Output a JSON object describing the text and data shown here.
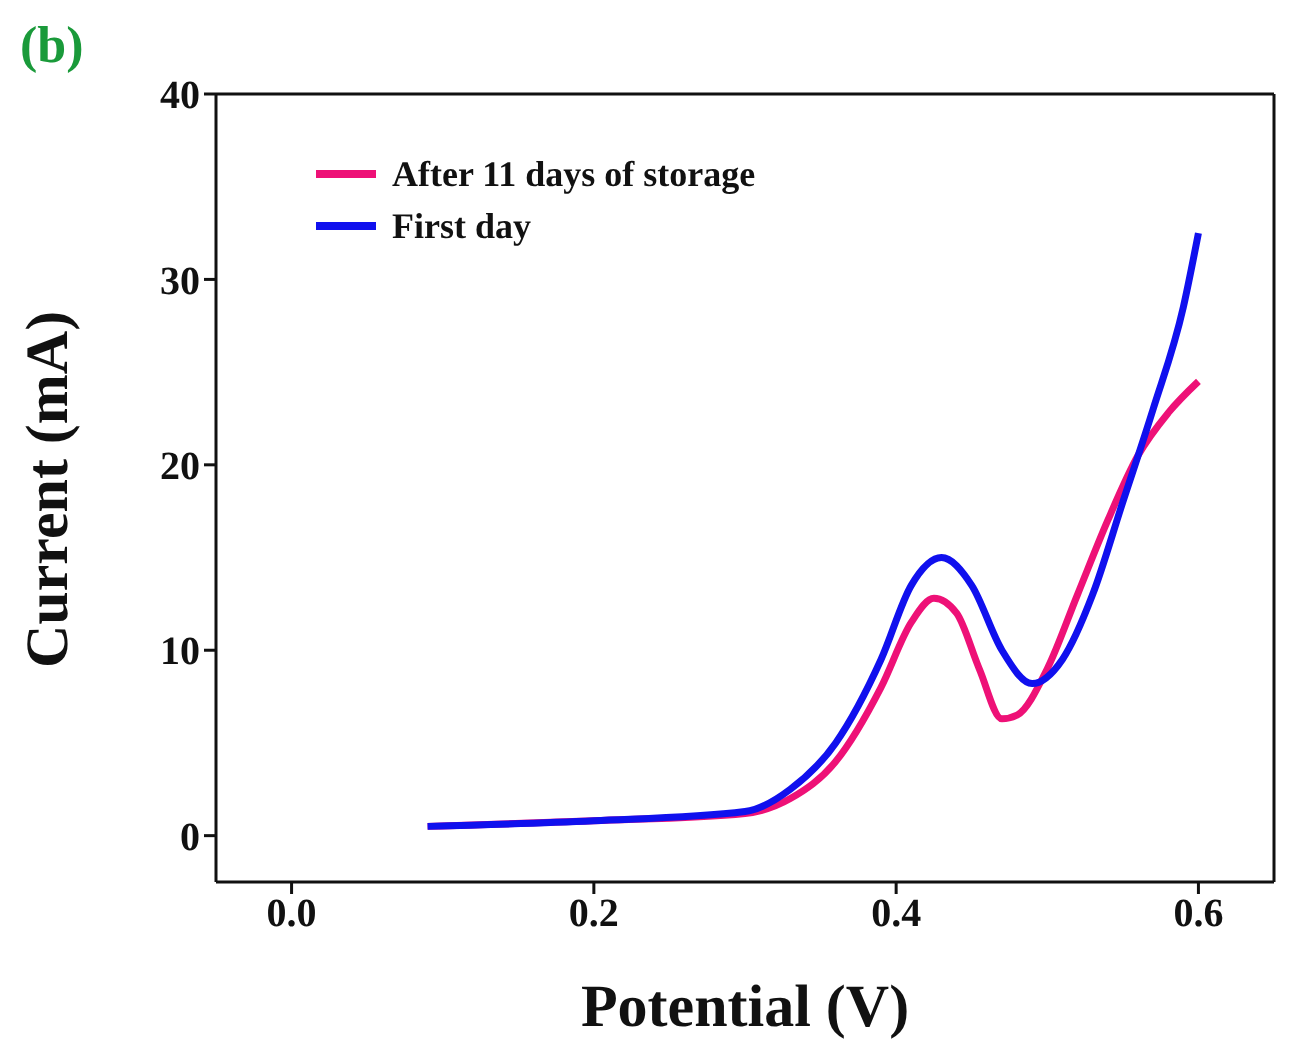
{
  "chart_data": {
    "type": "line",
    "title": "(b)",
    "xlabel": "Potential (V)",
    "ylabel": "Current (mA)",
    "xlim": [
      -0.05,
      0.65
    ],
    "xticks": [
      {
        "value": 0,
        "label": "0.0"
      },
      {
        "value": 0.2,
        "label": "0.2"
      },
      {
        "value": 0.4,
        "label": "0.4"
      },
      {
        "value": 0.6,
        "label": "0.6"
      }
    ],
    "ylim": [
      -2.5,
      40
    ],
    "yticks": [
      0,
      10,
      20,
      30,
      40
    ],
    "legend": "top left",
    "marker": "none",
    "line_style": "solid",
    "series": [
      {
        "name": "After 11 days of storage",
        "color": "#ee1177",
        "x": [
          0.09,
          0.2,
          0.3,
          0.33,
          0.36,
          0.39,
          0.41,
          0.425,
          0.44,
          0.455,
          0.47,
          0.48,
          0.5,
          0.52,
          0.54,
          0.56,
          0.58,
          0.6
        ],
        "values": [
          0.5,
          0.8,
          1.2,
          2,
          4,
          8,
          11.5,
          12.8,
          12,
          9,
          6.3,
          6.5,
          9,
          13,
          17,
          20.5,
          22.8,
          24.5
        ]
      },
      {
        "name": "First day",
        "color": "#1010ee",
        "x": [
          0.09,
          0.2,
          0.3,
          0.33,
          0.36,
          0.39,
          0.41,
          0.43,
          0.45,
          0.47,
          0.49,
          0.51,
          0.53,
          0.55,
          0.57,
          0.59,
          0.6
        ],
        "values": [
          0.5,
          0.8,
          1.3,
          2.5,
          5,
          9.5,
          13.5,
          15,
          13.5,
          10,
          8.2,
          9.5,
          13,
          18,
          23,
          28.5,
          32.5
        ]
      }
    ]
  }
}
